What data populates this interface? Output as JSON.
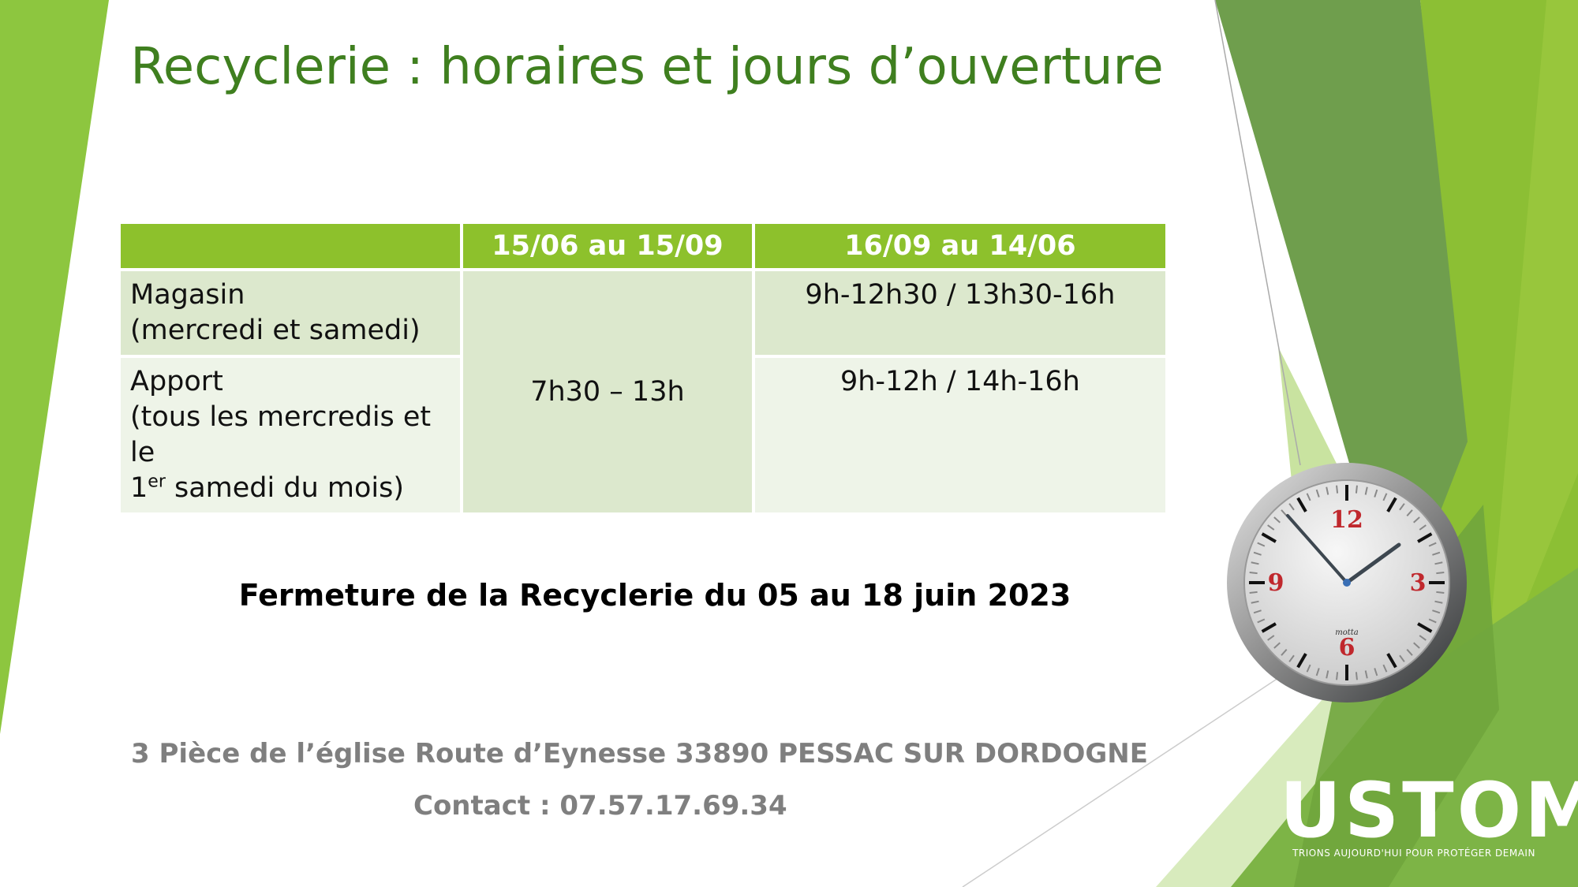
{
  "title": "Recyclerie : horaires et jours d’ouverture",
  "table": {
    "headers": [
      "",
      "15/06 au 15/09",
      "16/09 au 14/06"
    ],
    "rows": [
      {
        "label_line1": "Magasin",
        "label_line2": "(mercredi et samedi)",
        "winter": "9h-12h30 / 13h30-16h"
      },
      {
        "label_line1": "Apport",
        "label_line2": "(tous les mercredis et le",
        "label_line3_num": "1",
        "label_line3_sup": "er",
        "label_line3_rest": " samedi du mois)",
        "winter": "9h-12h / 14h-16h"
      }
    ],
    "summer_shared": "7h30 – 13h"
  },
  "closure": "Fermeture de la Recyclerie du 05 au 18 juin 2023",
  "address": "3 Pièce de l’église Route d’Eynesse 33890 PESSAC SUR DORDOGNE",
  "contact": "Contact : 07.57.17.69.34",
  "logo": {
    "word": "USTOM",
    "tagline": "TRIONS AUJOURD'HUI POUR PROTÉGER DEMAIN"
  },
  "clock": {
    "numerals": [
      "12",
      "3",
      "6",
      "9"
    ],
    "brand": "motta"
  },
  "colors": {
    "title": "#3f7f1f",
    "header_bg": "#8dc12c",
    "row_dark": "#dce8cd",
    "row_light": "#eef4e8",
    "accent_green": "#8dc63f"
  }
}
